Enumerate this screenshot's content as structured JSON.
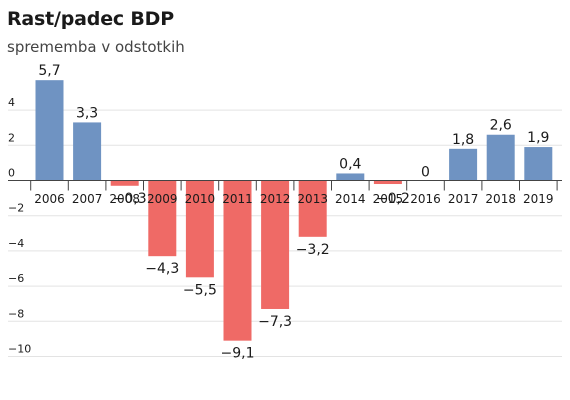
{
  "title": "Rast/padec BDP",
  "subtitle": "sprememba v odstotkih",
  "colors": {
    "positive": "#6f93c2",
    "negative": "#ef6a66",
    "grid": "#e3e3e3",
    "axis": "#444444",
    "text": "#1a1a1a"
  },
  "chart_data": {
    "type": "bar",
    "title": "Rast/padec BDP",
    "subtitle": "sprememba v odstotkih",
    "xlabel": "",
    "ylabel": "",
    "categories": [
      "2006",
      "2007",
      "2008",
      "2009",
      "2010",
      "2011",
      "2012",
      "2013",
      "2014",
      "2015",
      "2016",
      "2017",
      "2018",
      "2019"
    ],
    "values": [
      5.7,
      3.3,
      -0.3,
      -4.3,
      -5.5,
      -9.1,
      -7.3,
      -3.2,
      0.4,
      -0.2,
      0,
      1.8,
      2.6,
      1.9
    ],
    "value_labels": [
      "5,7",
      "3,3",
      "−0,3",
      "−4,3",
      "−5,5",
      "−9,1",
      "−7,3",
      "−3,2",
      "0,4",
      "−0,2",
      "0",
      "1,8",
      "2,6",
      "1,9"
    ],
    "yticks": [
      4,
      2,
      0,
      -2,
      -4,
      -6,
      -8,
      -10
    ],
    "ytick_labels": [
      "4",
      "2",
      "0",
      "−2",
      "−4",
      "−6",
      "−8",
      "−10"
    ],
    "ylim": [
      -10,
      6
    ],
    "grid": true,
    "legend": "none"
  }
}
